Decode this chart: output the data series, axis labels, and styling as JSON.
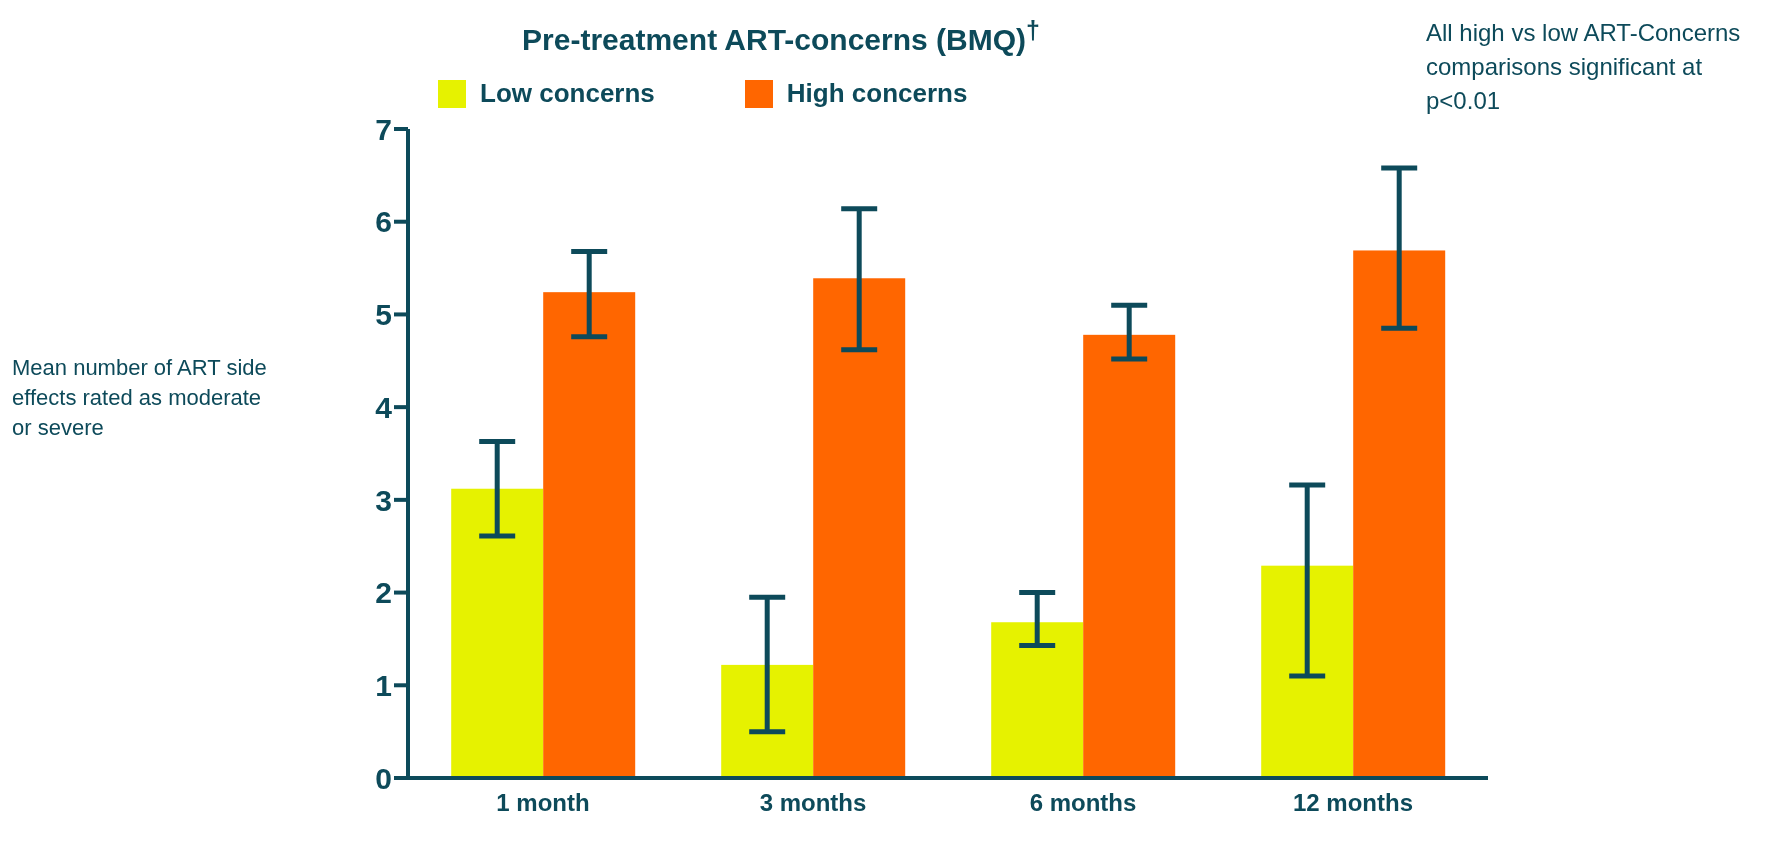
{
  "chart_data": {
    "type": "bar",
    "title": "Pre-treatment ART-concerns (BMQ)$^{†}$",
    "ylabel": "Mean number of ART side effects rated as moderate or severe",
    "annotations": [
      "All high vs low ART-Concerns comparisons significant at p<0.01"
    ],
    "categories": [
      "1 month",
      "3 months",
      "6 months",
      "12 months"
    ],
    "series": [
      {
        "name": "Low concerns",
        "color": "#e6f200",
        "values": [
          3.12,
          1.22,
          1.68,
          2.29
        ],
        "errors": [
          [
            2.61,
            3.63
          ],
          [
            0.5,
            1.95
          ],
          [
            1.43,
            2.0
          ],
          [
            1.1,
            3.16
          ]
        ]
      },
      {
        "name": "High concerns",
        "color": "#ff6600",
        "values": [
          5.24,
          5.39,
          4.78,
          5.69
        ],
        "errors": [
          [
            4.76,
            5.68
          ],
          [
            4.62,
            6.14
          ],
          [
            4.52,
            5.1
          ],
          [
            4.85,
            6.58
          ]
        ]
      }
    ],
    "ylim": [
      0,
      7
    ],
    "yticks": [
      0,
      1,
      2,
      3,
      4,
      5,
      6,
      7
    ],
    "grid": false,
    "legend": "top"
  }
}
